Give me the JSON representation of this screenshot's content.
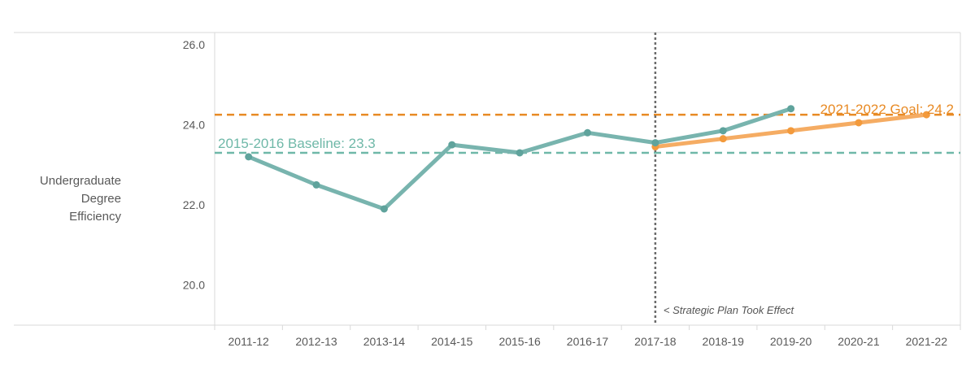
{
  "chart_data": {
    "type": "line",
    "ylabel_lines": [
      "Undergraduate",
      "Degree",
      "Efficiency"
    ],
    "categories": [
      "2011-12",
      "2012-13",
      "2013-14",
      "2014-15",
      "2015-16",
      "2016-17",
      "2017-18",
      "2018-19",
      "2019-20",
      "2020-21",
      "2021-22"
    ],
    "y_ticks": [
      "20.0",
      "22.0",
      "24.0",
      "26.0"
    ],
    "ylim": [
      19.0,
      26.3
    ],
    "grid": false,
    "series": [
      {
        "values": [
          23.2,
          22.5,
          21.9,
          23.5,
          23.3,
          23.8,
          23.55,
          23.85,
          24.4,
          null,
          null
        ]
      },
      {
        "values": [
          null,
          null,
          null,
          null,
          null,
          null,
          23.45,
          23.65,
          23.85,
          24.05,
          24.25
        ]
      }
    ],
    "reference_lines": [
      {
        "label": "2015-2016 Baseline: 23.3",
        "value": 23.3
      },
      {
        "label": "2021-2022 Goal: 24.2",
        "value": 24.25
      }
    ],
    "annotation": {
      "label": "< Strategic Plan Took Effect",
      "category": "2017-18"
    },
    "colors": {
      "actual": "#78b4ae",
      "actual_marker": "#5fa39c",
      "target": "#f5ac63",
      "target_marker": "#f39a3c",
      "baseline": "#6fb8a8",
      "goal": "#e88a24",
      "vline": "#6b6b6b",
      "axis_text": "#595959",
      "axis_line": "#d9d9d9"
    }
  }
}
